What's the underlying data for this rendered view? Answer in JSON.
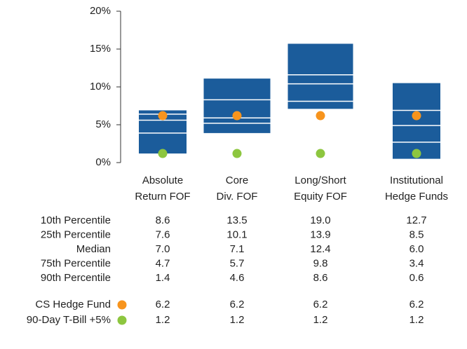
{
  "chart_data": {
    "type": "floating-box",
    "categories": [
      [
        "Absolute",
        "Return FOF"
      ],
      [
        "Core",
        "Div. FOF"
      ],
      [
        "Long/Short",
        "Equity FOF"
      ],
      [
        "Institutional",
        "Hedge Funds"
      ]
    ],
    "box_color": "#1b5c9b",
    "boxes": [
      {
        "high": 6.9,
        "upper": 6.4,
        "median": 5.6,
        "lower": 3.9,
        "low": 1.2
      },
      {
        "high": 11.1,
        "upper": 8.3,
        "median": 5.9,
        "lower": 5.2,
        "low": 3.9
      },
      {
        "high": 15.7,
        "upper": 11.6,
        "median": 10.4,
        "lower": 8.1,
        "low": 7.1
      },
      {
        "high": 10.5,
        "upper": 6.9,
        "median": 4.9,
        "lower": 2.7,
        "low": 0.5
      }
    ],
    "series": [
      {
        "name": "CS Hedge Fund",
        "color": "#f7941d",
        "values": [
          6.2,
          6.2,
          6.2,
          6.2
        ]
      },
      {
        "name": "90-Day T-Bill +5%",
        "color": "#8dc63f",
        "values": [
          1.2,
          1.2,
          1.2,
          1.2
        ]
      }
    ],
    "ylim": [
      0,
      20
    ],
    "yticks": [
      {
        "value": 0,
        "label": "0%"
      },
      {
        "value": 5,
        "label": "5%"
      },
      {
        "value": 10,
        "label": "10%"
      },
      {
        "value": 15,
        "label": "15%"
      },
      {
        "value": 20,
        "label": "20%"
      }
    ]
  },
  "table": {
    "row_labels": [
      "10th Percentile",
      "25th Percentile",
      "Median",
      "75th Percentile",
      "90th Percentile"
    ],
    "rows": [
      [
        "8.6",
        "13.5",
        "19.0",
        "12.7"
      ],
      [
        "7.6",
        "10.1",
        "13.9",
        "8.5"
      ],
      [
        "7.0",
        "7.1",
        "12.4",
        "6.0"
      ],
      [
        "4.7",
        "5.7",
        "9.8",
        "3.4"
      ],
      [
        "1.4",
        "4.6",
        "8.6",
        "0.6"
      ]
    ],
    "series_rows": [
      [
        "6.2",
        "6.2",
        "6.2",
        "6.2"
      ],
      [
        "1.2",
        "1.2",
        "1.2",
        "1.2"
      ]
    ]
  }
}
